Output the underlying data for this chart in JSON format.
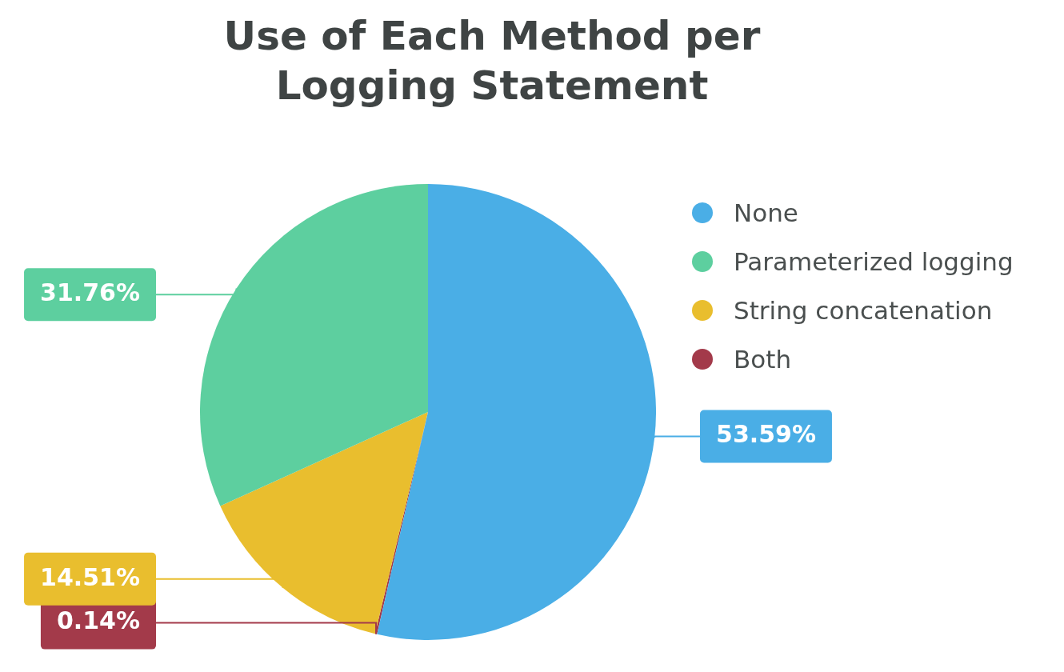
{
  "chart_data": {
    "type": "pie",
    "title": "Use of Each Method per Logging Statement",
    "categories": [
      "None",
      "Parameterized logging",
      "String concatenation",
      "Both"
    ],
    "values": [
      53.59,
      31.76,
      14.51,
      0.14
    ],
    "colors": [
      "#4aaee6",
      "#5dcf9f",
      "#e9be2e",
      "#a33a4a"
    ],
    "value_labels": [
      "53.59%",
      "31.76%",
      "14.51%",
      "0.14%"
    ],
    "legend": "right"
  }
}
